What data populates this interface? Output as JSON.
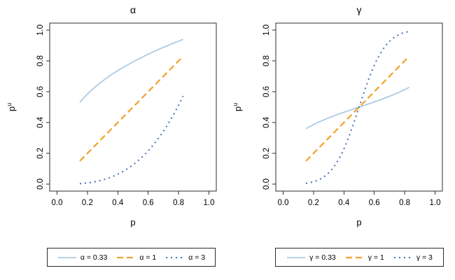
{
  "figure": {
    "background": "#ffffff",
    "box_color": "#2e2e2e",
    "text_color": "#000000"
  },
  "chart_data": [
    {
      "type": "line",
      "title": "α",
      "xlabel": "p",
      "ylabel": "p^u",
      "xlim": [
        0,
        1
      ],
      "ylim": [
        0,
        1
      ],
      "grid": false,
      "legend_position": "bottom",
      "xticks": [
        0,
        0.2,
        0.4,
        0.6,
        0.8,
        1
      ],
      "xtick_labels": [
        "0.0",
        "0.2",
        "0.4",
        "0.6",
        "0.8",
        "1.0"
      ],
      "yticks": [
        0,
        0.2,
        0.4,
        0.6,
        0.8,
        1
      ],
      "ytick_labels": [
        "0.0",
        "0.2",
        "0.4",
        "0.6",
        "0.8",
        "1.0"
      ],
      "x": [
        0.15,
        0.17,
        0.19,
        0.21,
        0.23,
        0.25,
        0.27,
        0.29,
        0.31,
        0.33,
        0.35,
        0.37,
        0.39,
        0.41,
        0.43,
        0.45,
        0.47,
        0.49,
        0.51,
        0.53,
        0.55,
        0.57,
        0.59,
        0.61,
        0.63,
        0.65,
        0.67,
        0.69,
        0.71,
        0.73,
        0.75,
        0.77,
        0.79,
        0.81,
        0.83
      ],
      "series": [
        {
          "name": "α = 0.33",
          "line_style": "solid",
          "color": "#aecbe3",
          "values": [
            0.531,
            0.554,
            0.575,
            0.594,
            0.613,
            0.63,
            0.646,
            0.662,
            0.677,
            0.691,
            0.705,
            0.718,
            0.731,
            0.743,
            0.755,
            0.766,
            0.777,
            0.788,
            0.799,
            0.809,
            0.819,
            0.829,
            0.839,
            0.848,
            0.857,
            0.866,
            0.875,
            0.884,
            0.892,
            0.9,
            0.909,
            0.917,
            0.924,
            0.932,
            0.94
          ]
        },
        {
          "name": "α = 1",
          "line_style": "dashed",
          "color": "#f3a332",
          "values": [
            0.15,
            0.17,
            0.19,
            0.21,
            0.23,
            0.25,
            0.27,
            0.29,
            0.31,
            0.33,
            0.35,
            0.37,
            0.39,
            0.41,
            0.43,
            0.45,
            0.47,
            0.49,
            0.51,
            0.53,
            0.55,
            0.57,
            0.59,
            0.61,
            0.63,
            0.65,
            0.67,
            0.69,
            0.71,
            0.73,
            0.75,
            0.77,
            0.79,
            0.81,
            0.83
          ]
        },
        {
          "name": "α = 3",
          "line_style": "dotted",
          "color": "#4472b8",
          "values": [
            0.003,
            0.005,
            0.007,
            0.009,
            0.012,
            0.016,
            0.02,
            0.024,
            0.03,
            0.036,
            0.043,
            0.051,
            0.059,
            0.069,
            0.08,
            0.091,
            0.104,
            0.118,
            0.133,
            0.149,
            0.166,
            0.185,
            0.205,
            0.227,
            0.25,
            0.275,
            0.301,
            0.329,
            0.358,
            0.389,
            0.422,
            0.457,
            0.493,
            0.531,
            0.572
          ]
        }
      ]
    },
    {
      "type": "line",
      "title": "γ",
      "xlabel": "p",
      "ylabel": "p^u",
      "xlim": [
        0,
        1
      ],
      "ylim": [
        0,
        1
      ],
      "grid": false,
      "legend_position": "bottom",
      "xticks": [
        0,
        0.2,
        0.4,
        0.6,
        0.8,
        1
      ],
      "xtick_labels": [
        "0.0",
        "0.2",
        "0.4",
        "0.6",
        "0.8",
        "1.0"
      ],
      "yticks": [
        0,
        0.2,
        0.4,
        0.6,
        0.8,
        1
      ],
      "ytick_labels": [
        "0.0",
        "0.2",
        "0.4",
        "0.6",
        "0.8",
        "1.0"
      ],
      "x": [
        0.15,
        0.17,
        0.19,
        0.21,
        0.23,
        0.25,
        0.27,
        0.29,
        0.31,
        0.33,
        0.35,
        0.37,
        0.39,
        0.41,
        0.43,
        0.45,
        0.47,
        0.49,
        0.51,
        0.53,
        0.55,
        0.57,
        0.59,
        0.61,
        0.63,
        0.65,
        0.67,
        0.69,
        0.71,
        0.73,
        0.75,
        0.77,
        0.79,
        0.81,
        0.83
      ],
      "series": [
        {
          "name": "γ = 0.33",
          "line_style": "solid",
          "color": "#aecbe3",
          "values": [
            0.359,
            0.371,
            0.381,
            0.391,
            0.401,
            0.409,
            0.418,
            0.426,
            0.434,
            0.441,
            0.449,
            0.456,
            0.463,
            0.47,
            0.477,
            0.483,
            0.49,
            0.497,
            0.503,
            0.51,
            0.517,
            0.523,
            0.53,
            0.537,
            0.544,
            0.551,
            0.559,
            0.566,
            0.574,
            0.582,
            0.591,
            0.599,
            0.609,
            0.618,
            0.629
          ]
        },
        {
          "name": "γ = 1",
          "line_style": "dashed",
          "color": "#f3a332",
          "values": [
            0.15,
            0.17,
            0.19,
            0.21,
            0.23,
            0.25,
            0.27,
            0.29,
            0.31,
            0.33,
            0.35,
            0.37,
            0.39,
            0.41,
            0.43,
            0.45,
            0.47,
            0.49,
            0.51,
            0.53,
            0.55,
            0.57,
            0.59,
            0.61,
            0.63,
            0.65,
            0.67,
            0.69,
            0.71,
            0.73,
            0.75,
            0.77,
            0.79,
            0.81,
            0.83
          ]
        },
        {
          "name": "γ = 3",
          "line_style": "dotted",
          "color": "#4472b8",
          "values": [
            0.005,
            0.009,
            0.013,
            0.018,
            0.026,
            0.036,
            0.048,
            0.064,
            0.083,
            0.107,
            0.135,
            0.168,
            0.207,
            0.251,
            0.3,
            0.354,
            0.411,
            0.47,
            0.53,
            0.589,
            0.646,
            0.7,
            0.749,
            0.793,
            0.831,
            0.865,
            0.893,
            0.917,
            0.936,
            0.952,
            0.964,
            0.974,
            0.982,
            0.987,
            0.991
          ]
        }
      ]
    }
  ]
}
